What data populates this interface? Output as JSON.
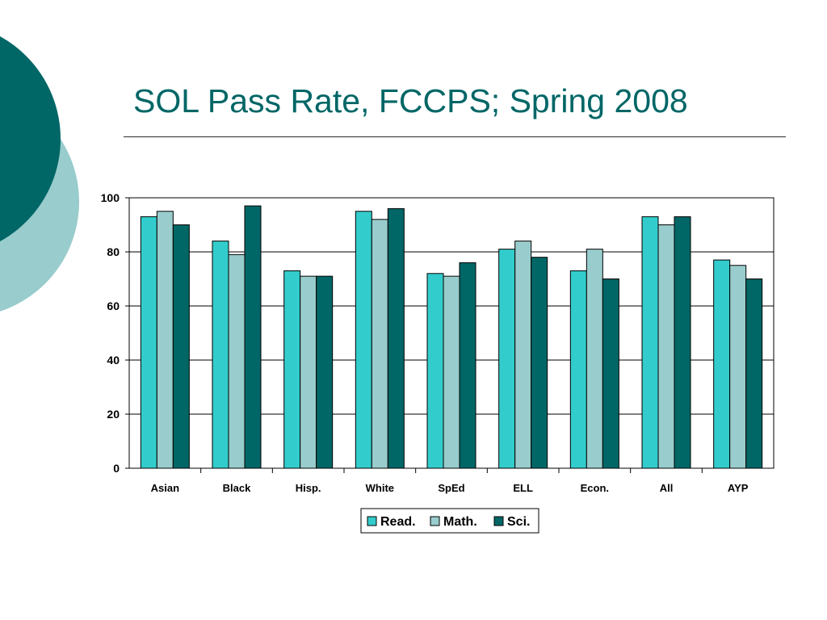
{
  "slide": {
    "title": "SOL Pass Rate, FCCPS; Spring 2008"
  },
  "colors": {
    "title": "#006666",
    "circle_dark": "#006666",
    "circle_light": "#99CCCC"
  },
  "chart_data": {
    "type": "bar",
    "categories": [
      "Asian",
      "Black",
      "Hisp.",
      "White",
      "SpEd",
      "ELL",
      "Econ.",
      "All",
      "AYP"
    ],
    "series": [
      {
        "name": "Read.",
        "color": "#33CCCC",
        "values": [
          93,
          84,
          73,
          95,
          72,
          81,
          73,
          93,
          77
        ]
      },
      {
        "name": "Math.",
        "color": "#99CCCC",
        "values": [
          95,
          79,
          71,
          92,
          71,
          84,
          81,
          90,
          75
        ]
      },
      {
        "name": "Sci.",
        "color": "#006666",
        "values": [
          90,
          97,
          71,
          96,
          76,
          78,
          70,
          93,
          70
        ]
      }
    ],
    "ylim": [
      0,
      100
    ],
    "yticks": [
      0,
      20,
      40,
      60,
      80,
      100
    ],
    "grid": true,
    "legend": "bottom-center",
    "title": "",
    "xlabel": "",
    "ylabel": ""
  }
}
